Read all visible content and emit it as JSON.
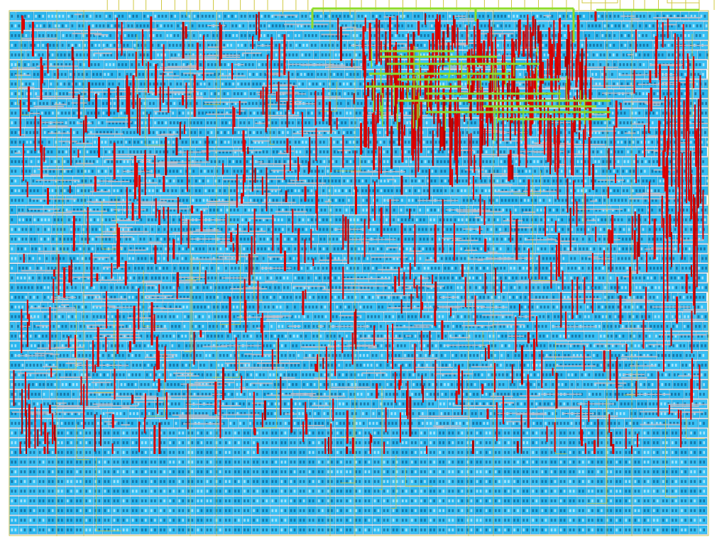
{
  "layout": {
    "colors": {
      "background": "#ffffff",
      "cell_fill": "#2ab6ef",
      "cell_fill_alt": "#38c0f5",
      "cell_outline": "#1a8fc4",
      "pin_text": "#0b3d66",
      "power_rail": "#c7c7d8",
      "metal_vertical": "#d90000",
      "metal_vertical_dark": "#b00000",
      "metal_horizontal": "#bcbcc8",
      "io_pin_wire": "#d0c840",
      "top_route": "#8ddc2a",
      "core_boundary": "#c8c050"
    },
    "layers": [
      "std-cells",
      "power-rails",
      "metal2-vertical",
      "metal3-horizontal",
      "io-pins",
      "top-level-routes"
    ],
    "row_count": 54,
    "column_count": 75,
    "core_density_split_row": 43
  }
}
